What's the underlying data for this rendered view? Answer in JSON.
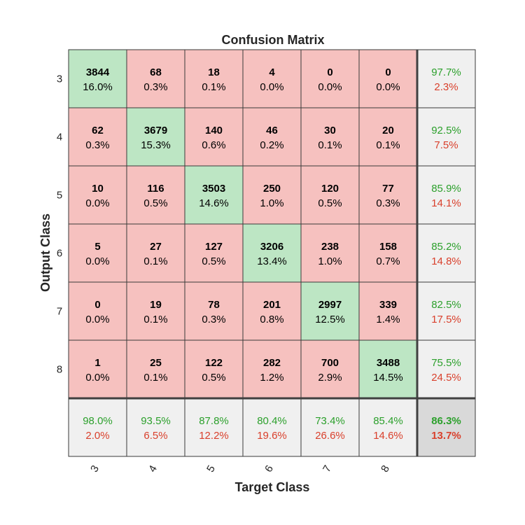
{
  "chart_data": {
    "type": "heatmap",
    "title": "Confusion Matrix",
    "xlabel": "Target Class",
    "ylabel": "Output Class",
    "classes": [
      "3",
      "4",
      "5",
      "6",
      "7",
      "8"
    ],
    "counts": [
      [
        3844,
        68,
        18,
        4,
        0,
        0
      ],
      [
        62,
        3679,
        140,
        46,
        30,
        20
      ],
      [
        10,
        116,
        3503,
        250,
        120,
        77
      ],
      [
        5,
        27,
        127,
        3206,
        238,
        158
      ],
      [
        0,
        19,
        78,
        201,
        2997,
        339
      ],
      [
        1,
        25,
        122,
        282,
        700,
        3488
      ]
    ],
    "count_labels": [
      [
        "3844",
        "68",
        "18",
        "4",
        "0",
        "0"
      ],
      [
        "62",
        "3679",
        "140",
        "46",
        "30",
        "20"
      ],
      [
        "10",
        "116",
        "3503",
        "250",
        "120",
        "77"
      ],
      [
        "5",
        "27",
        "127",
        "3206",
        "238",
        "158"
      ],
      [
        "0",
        "19",
        "78",
        "201",
        "2997",
        "339"
      ],
      [
        "1",
        "25",
        "122",
        "282",
        "700",
        "3488"
      ]
    ],
    "percent_labels": [
      [
        "16.0%",
        "0.3%",
        "0.1%",
        "0.0%",
        "0.0%",
        "0.0%"
      ],
      [
        "0.3%",
        "15.3%",
        "0.6%",
        "0.2%",
        "0.1%",
        "0.1%"
      ],
      [
        "0.0%",
        "0.5%",
        "14.6%",
        "1.0%",
        "0.5%",
        "0.3%"
      ],
      [
        "0.0%",
        "0.1%",
        "0.5%",
        "13.4%",
        "1.0%",
        "0.7%"
      ],
      [
        "0.0%",
        "0.1%",
        "0.3%",
        "0.8%",
        "12.5%",
        "1.4%"
      ],
      [
        "0.0%",
        "0.1%",
        "0.5%",
        "1.2%",
        "2.9%",
        "14.5%"
      ]
    ],
    "row_summary": [
      {
        "correct": "97.7%",
        "error": "2.3%"
      },
      {
        "correct": "92.5%",
        "error": "7.5%"
      },
      {
        "correct": "85.9%",
        "error": "14.1%"
      },
      {
        "correct": "85.2%",
        "error": "14.8%"
      },
      {
        "correct": "82.5%",
        "error": "17.5%"
      },
      {
        "correct": "75.5%",
        "error": "24.5%"
      }
    ],
    "column_summary": [
      {
        "correct": "98.0%",
        "error": "2.0%"
      },
      {
        "correct": "93.5%",
        "error": "6.5%"
      },
      {
        "correct": "87.8%",
        "error": "12.2%"
      },
      {
        "correct": "80.4%",
        "error": "19.6%"
      },
      {
        "correct": "73.4%",
        "error": "26.6%"
      },
      {
        "correct": "85.4%",
        "error": "14.6%"
      }
    ],
    "overall": {
      "correct": "86.3%",
      "error": "13.7%"
    },
    "colors": {
      "diagonal": "#bde6c4",
      "off_diagonal": "#f6c1bf",
      "summary": "#f0f0f0",
      "overall": "#d9d9d9",
      "correct_text": "#2ca02c",
      "error_text": "#d9402c"
    }
  }
}
